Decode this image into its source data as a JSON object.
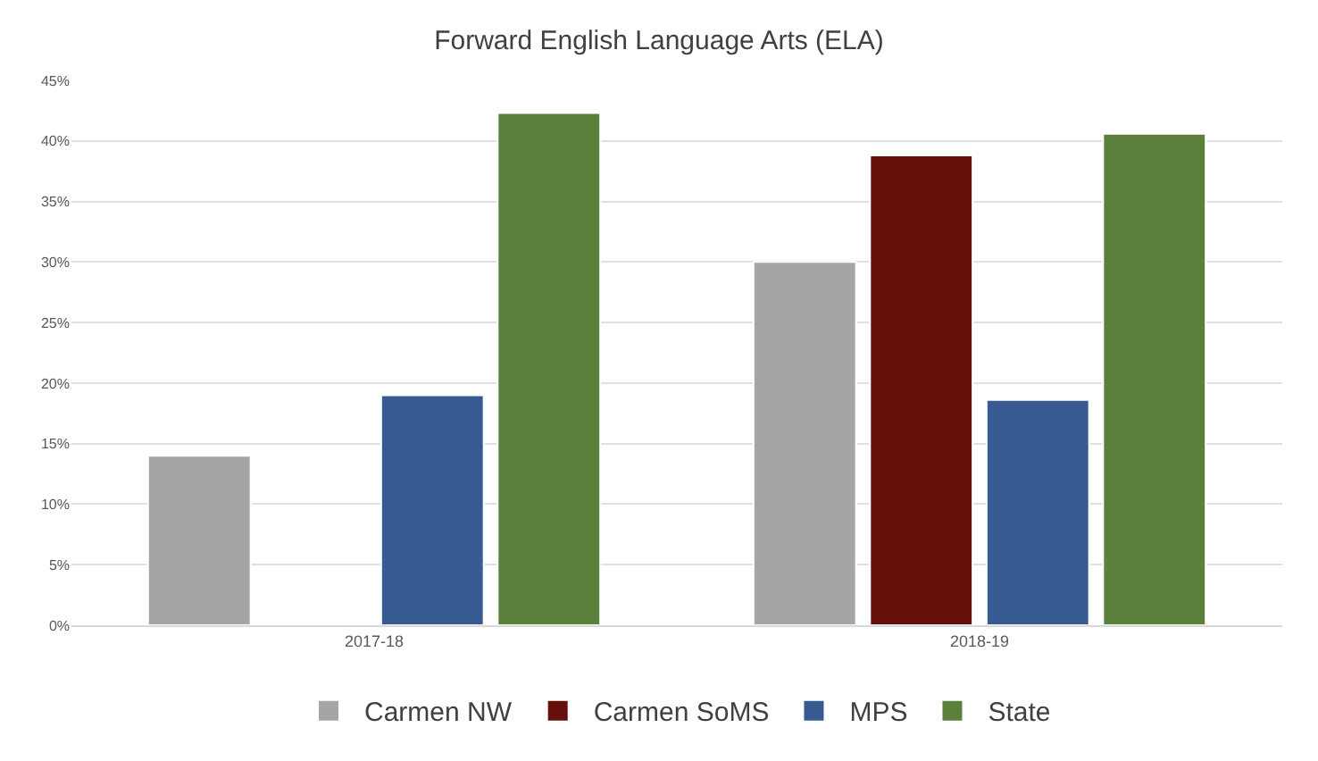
{
  "chart_data": {
    "type": "bar",
    "title": "Forward English Language Arts (ELA)",
    "categories": [
      "2017-18",
      "2018-19"
    ],
    "series": [
      {
        "name": "Carmen NW",
        "color": "#a5a5a5",
        "values": [
          14.0,
          30.0
        ]
      },
      {
        "name": "Carmen SoMS",
        "color": "#65100b",
        "values": [
          null,
          38.8
        ]
      },
      {
        "name": "MPS",
        "color": "#385a93",
        "values": [
          19.0,
          18.6
        ]
      },
      {
        "name": "State",
        "color": "#5b803c",
        "values": [
          42.3,
          40.6
        ]
      }
    ],
    "ylim": [
      0,
      45
    ],
    "yticks": [
      {
        "value": 0,
        "label": "0%"
      },
      {
        "value": 5,
        "label": "5%"
      },
      {
        "value": 10,
        "label": "10%"
      },
      {
        "value": 15,
        "label": "15%"
      },
      {
        "value": 20,
        "label": "20%"
      },
      {
        "value": 25,
        "label": "25%"
      },
      {
        "value": 30,
        "label": "30%"
      },
      {
        "value": 35,
        "label": "35%"
      },
      {
        "value": 40,
        "label": "40%"
      },
      {
        "value": 45,
        "label": "45%"
      }
    ],
    "grid": "y",
    "legend": "bottom"
  }
}
